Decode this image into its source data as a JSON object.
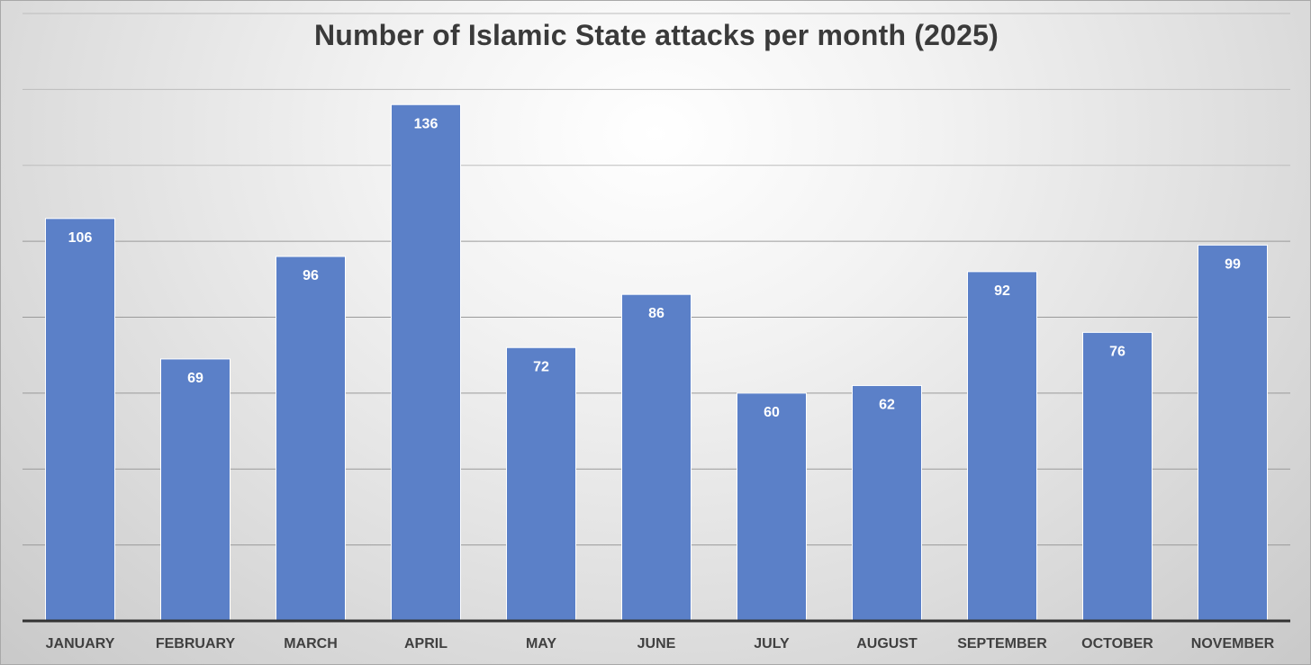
{
  "chart_data": {
    "type": "bar",
    "title": "Number of Islamic State attacks per month (2025)",
    "categories": [
      "JANUARY",
      "FEBRUARY",
      "MARCH",
      "APRIL",
      "MAY",
      "JUNE",
      "JULY",
      "AUGUST",
      "SEPTEMBER",
      "OCTOBER",
      "NOVEMBER"
    ],
    "values": [
      106,
      69,
      96,
      136,
      72,
      86,
      60,
      62,
      92,
      76,
      99
    ],
    "xlabel": "",
    "ylabel": "",
    "ylim": [
      0,
      160
    ],
    "ytick_step": 20,
    "grid": true,
    "legend": "none",
    "data_labels": "inside-end",
    "colors": {
      "bar": "#5b80c8",
      "bar_label": "#ffffff",
      "axis": "#333333",
      "grid": "#bdbdbd",
      "title": "#3a3a3a"
    }
  }
}
